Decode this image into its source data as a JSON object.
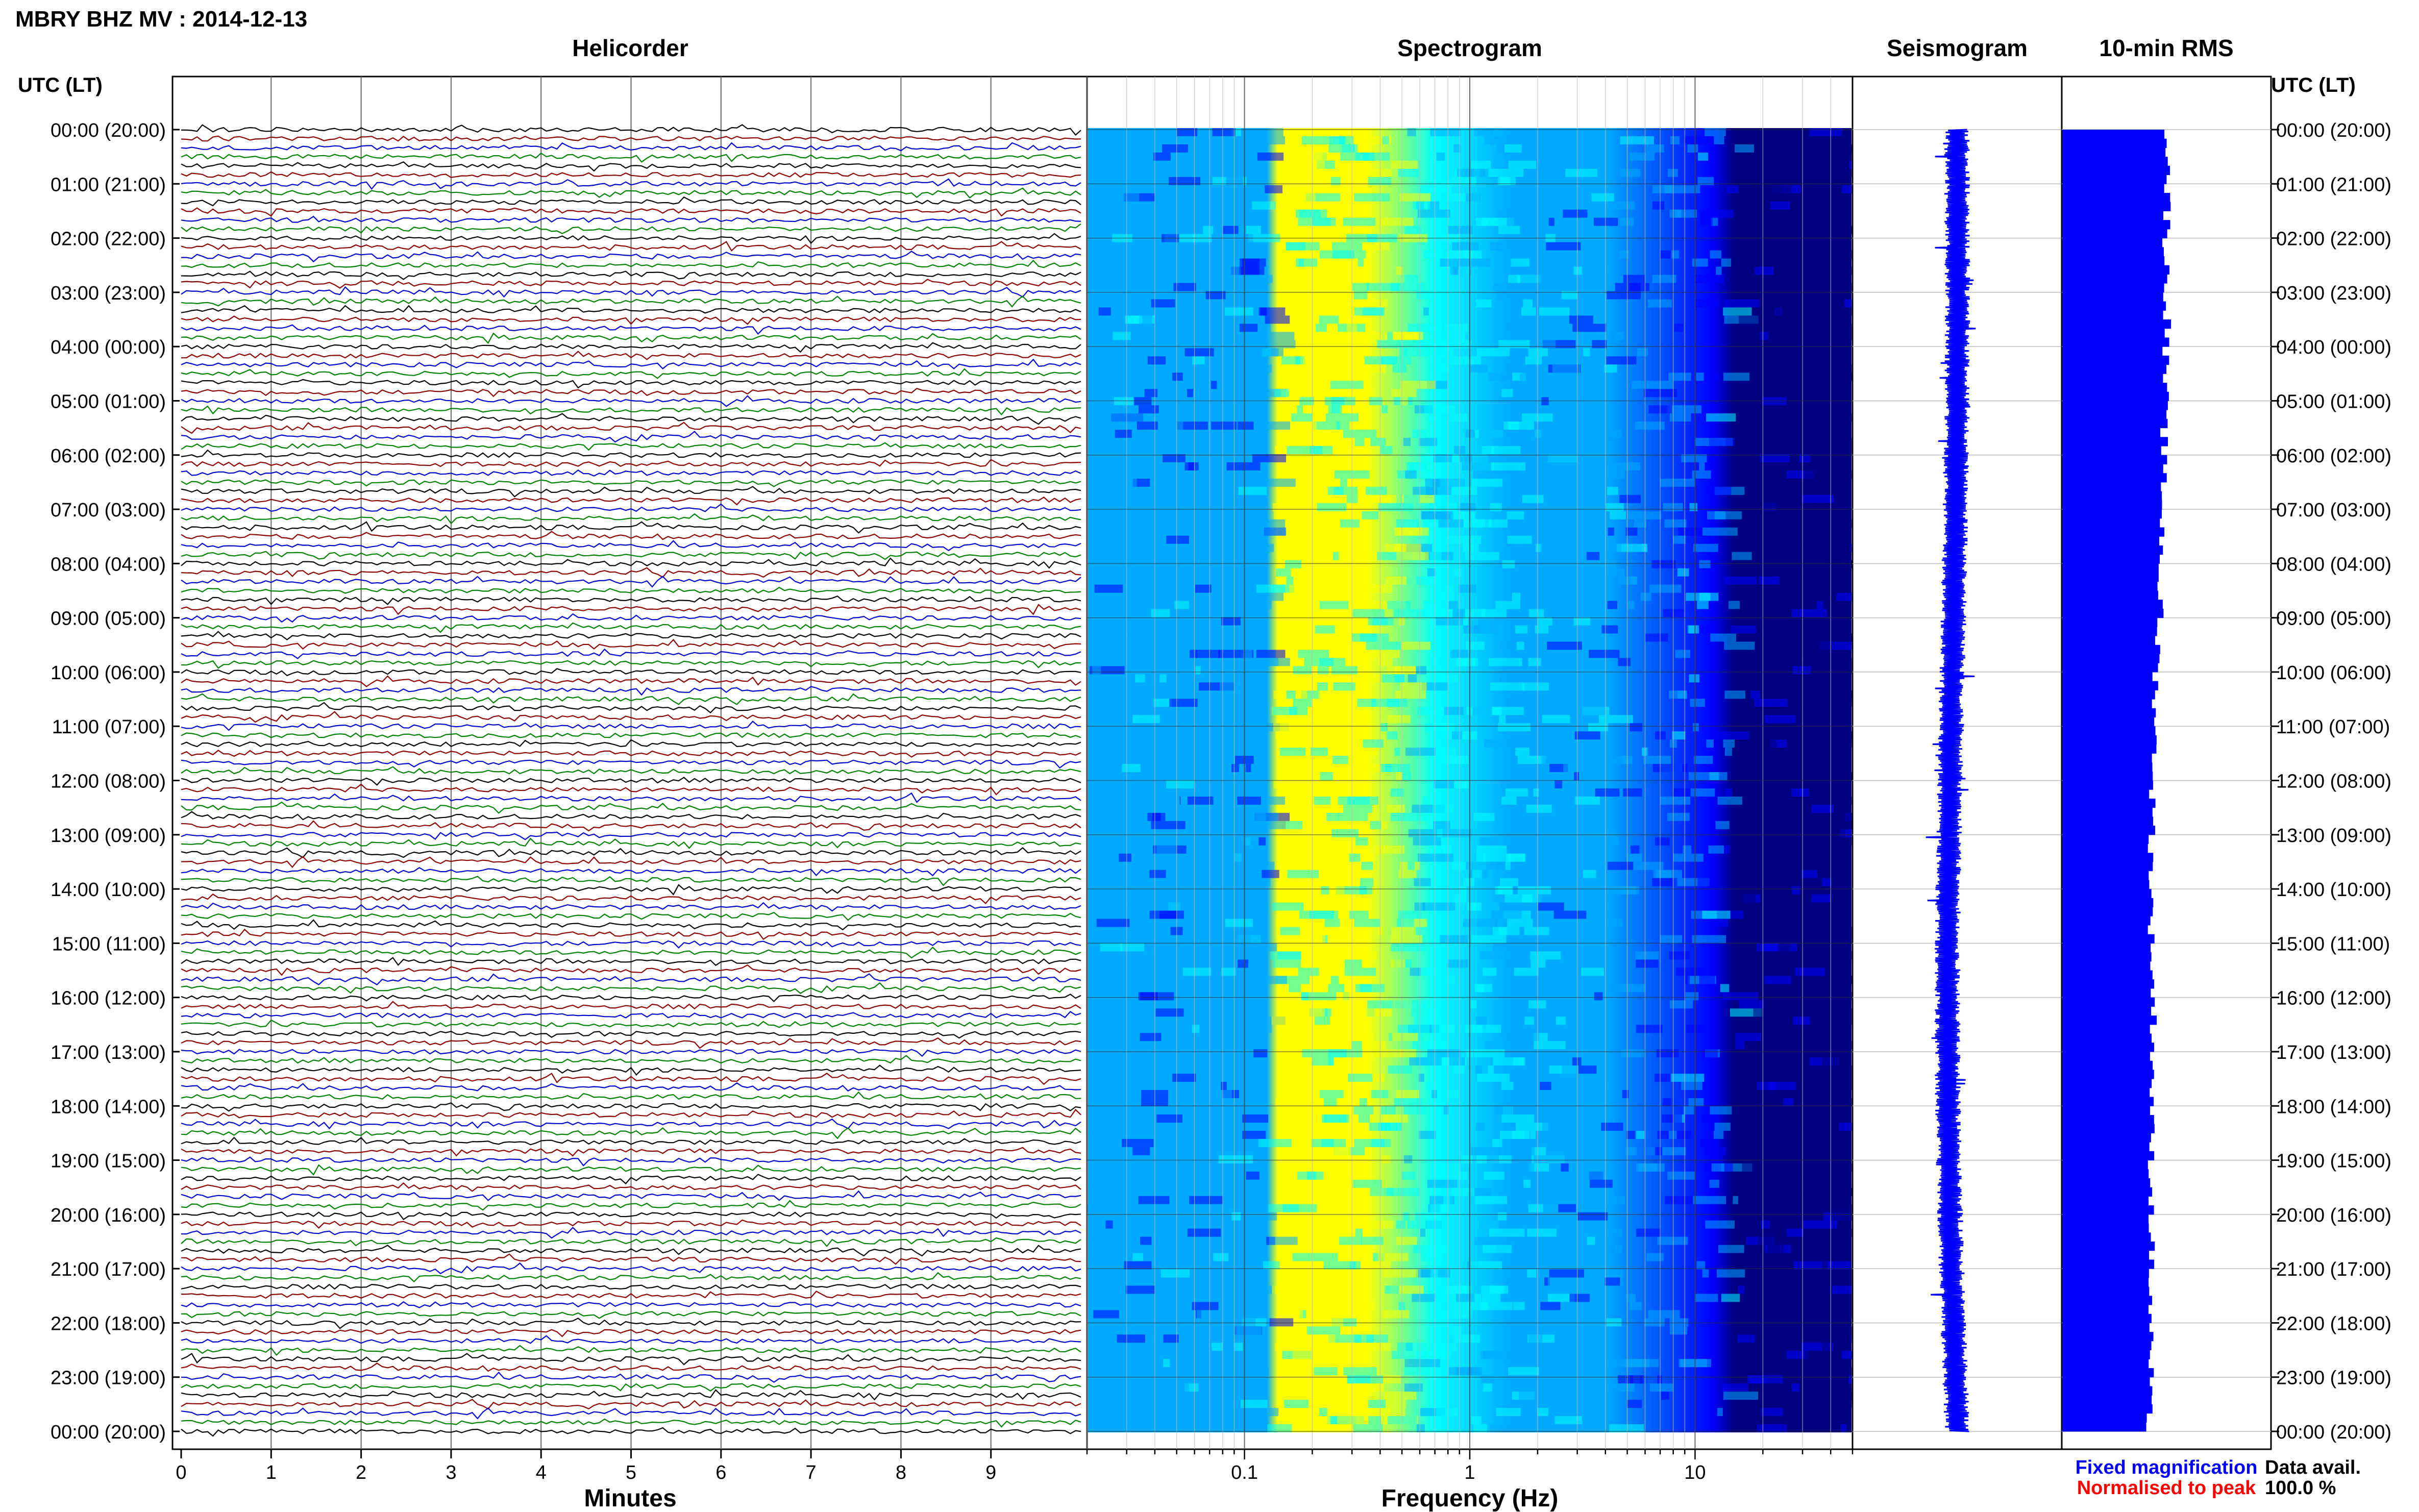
{
  "header": {
    "title": "MBRY BHZ MV : 2014-12-13"
  },
  "panels": {
    "helicorder": "Helicorder",
    "spectrogram": "Spectrogram",
    "seismogram": "Seismogram",
    "rms": "10-min RMS"
  },
  "axis_headers": {
    "left": "UTC (LT)",
    "right": "UTC (LT)"
  },
  "xlabels": {
    "helicorder": "Minutes",
    "spectrogram": "Frequency (Hz)"
  },
  "legend": {
    "fixed": "Fixed magnification",
    "normalised": "Normalised to peak",
    "fixed_color": "#0000ff",
    "normalised_color": "#ff0000"
  },
  "availability": {
    "label": "Data avail.",
    "value": "100.0 %"
  },
  "colors": {
    "trace_colors": [
      "#000000",
      "#8b0000",
      "#0000cd",
      "#008000"
    ],
    "rms_bar": "#0000ff",
    "seismogram": "#0000ff",
    "spectrogram_colormap": [
      "#000080",
      "#0000ff",
      "#00aaff",
      "#00ffff",
      "#ffff00"
    ]
  },
  "chart_data": [
    {
      "type": "line",
      "name": "helicorder",
      "title": "Helicorder",
      "xlabel": "Minutes",
      "x_ticks": [
        "0",
        "1",
        "2",
        "3",
        "4",
        "5",
        "6",
        "7",
        "8",
        "9"
      ],
      "xlim": [
        0,
        10
      ],
      "y_ticks_utc_lt": [
        "00:00 (20:00)",
        "01:00 (21:00)",
        "02:00 (22:00)",
        "03:00 (23:00)",
        "04:00 (00:00)",
        "05:00 (01:00)",
        "06:00 (02:00)",
        "07:00 (03:00)",
        "08:00 (04:00)",
        "09:00 (05:00)",
        "10:00 (06:00)",
        "11:00 (07:00)",
        "12:00 (08:00)",
        "13:00 (09:00)",
        "14:00 (10:00)",
        "15:00 (11:00)",
        "16:00 (12:00)",
        "17:00 (13:00)",
        "18:00 (14:00)",
        "19:00 (15:00)",
        "20:00 (16:00)",
        "21:00 (17:00)",
        "22:00 (18:00)",
        "23:00 (19:00)",
        "00:00 (20:00)"
      ],
      "ylim_hours": [
        0,
        24
      ],
      "lines_per_hour": 6,
      "grid": true
    },
    {
      "type": "heatmap",
      "name": "spectrogram",
      "title": "Spectrogram",
      "xlabel": "Frequency (Hz)",
      "x_scale": "log",
      "x_ticks": [
        0.1,
        1,
        10
      ],
      "xlim": [
        0.02,
        50
      ],
      "ylim_hours": [
        0,
        24
      ],
      "energy_bands_hz": [
        {
          "from": 0.02,
          "to": 0.13,
          "level": "low"
        },
        {
          "from": 0.13,
          "to": 0.5,
          "level": "high"
        },
        {
          "from": 0.5,
          "to": 2,
          "level": "medium"
        },
        {
          "from": 2,
          "to": 15,
          "level": "low"
        },
        {
          "from": 15,
          "to": 50,
          "level": "very low"
        }
      ]
    },
    {
      "type": "line",
      "name": "seismogram",
      "title": "Seismogram",
      "ylim_hours": [
        0,
        24
      ],
      "relative_amplitude": 1.0
    },
    {
      "type": "bar",
      "name": "rms",
      "title": "10-min RMS",
      "orientation": "horizontal",
      "ylim_hours": [
        0,
        24
      ],
      "hourly_relative_rms": [
        1.0,
        0.99,
        0.98,
        0.99,
        0.97,
        0.96,
        0.95,
        0.94,
        0.92,
        0.9,
        0.88,
        0.87,
        0.85,
        0.84,
        0.84,
        0.85,
        0.86,
        0.85,
        0.84,
        0.84,
        0.84,
        0.83,
        0.83,
        0.82
      ]
    }
  ]
}
